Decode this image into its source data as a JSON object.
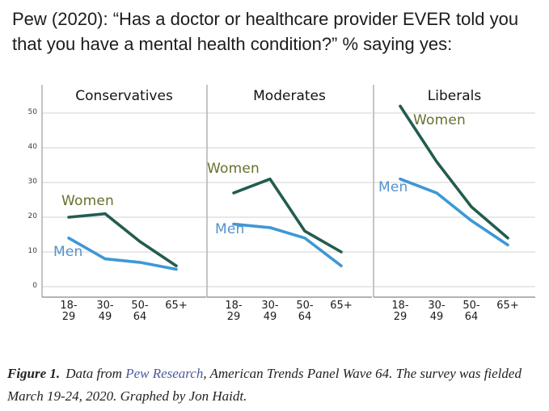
{
  "title": "Pew (2020): “Has a doctor or healthcare provider EVER told you that you have a mental health condition?” % saying yes:",
  "chart_data": {
    "type": "line",
    "categories": [
      "18-29",
      "30-49",
      "50-64",
      "65+"
    ],
    "category_tick_lines": [
      [
        "18-",
        "29"
      ],
      [
        "30-",
        "49"
      ],
      [
        "50-",
        "64"
      ],
      [
        "65+"
      ]
    ],
    "y_ticks": [
      0,
      10,
      20,
      30,
      40,
      50
    ],
    "ylim": [
      -3,
      58
    ],
    "grid": true,
    "legend_position": "inline-labels",
    "panels": [
      {
        "title": "Conservatives",
        "series": [
          {
            "name": "Women",
            "values": [
              20,
              21,
              13,
              6
            ]
          },
          {
            "name": "Men",
            "values": [
              14,
              8,
              7,
              5
            ]
          }
        ]
      },
      {
        "title": "Moderates",
        "series": [
          {
            "name": "Women",
            "values": [
              27,
              31,
              16,
              10
            ]
          },
          {
            "name": "Men",
            "values": [
              18,
              17,
              14,
              6
            ]
          }
        ]
      },
      {
        "title": "Liberals",
        "series": [
          {
            "name": "Women",
            "values": [
              52,
              36,
              23,
              14
            ]
          },
          {
            "name": "Men",
            "values": [
              31,
              27,
              19,
              12
            ]
          }
        ]
      }
    ],
    "series_labels": {
      "women": "Women",
      "men": "Men"
    },
    "colors": {
      "women_line": "#235c50",
      "men_line": "#3e98d4",
      "women_label": "#64722d",
      "men_label": "#5591cd",
      "gridline": "#d9d9d9",
      "axis_spine": "#b0b0b0",
      "x_axis_line": "#9a9a9a",
      "link": "#4a5a9c"
    }
  },
  "caption": {
    "figure_label": "Figure 1.",
    "before_link": "Data from ",
    "link_text": "Pew Research",
    "after_link": ", American Trends Panel Wave 64. The survey was fielded March 19-24, 2020. Graphed by Jon Haidt."
  }
}
